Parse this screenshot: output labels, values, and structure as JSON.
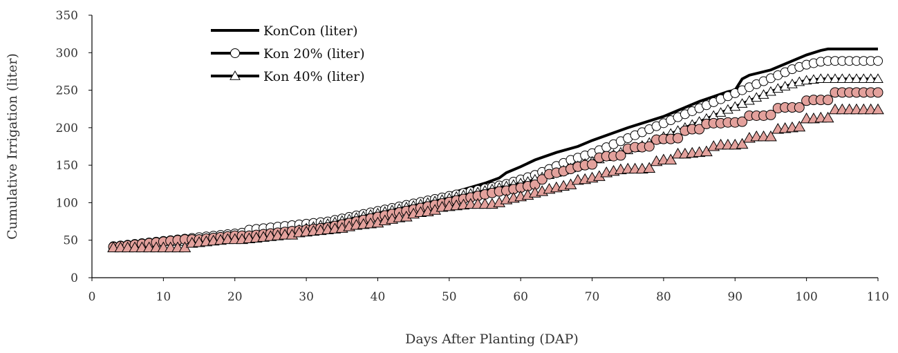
{
  "chart_data": {
    "type": "line",
    "title": "",
    "xlabel": "Days After Planting (DAP)",
    "ylabel": "Cumulative Irrigation (liter)",
    "xlim": [
      0,
      110
    ],
    "ylim": [
      0,
      350
    ],
    "xticks": [
      0,
      10,
      20,
      30,
      40,
      50,
      60,
      70,
      80,
      90,
      100,
      110
    ],
    "yticks": [
      0,
      50,
      100,
      150,
      200,
      250,
      300,
      350
    ],
    "grid": false,
    "legend_position": "top-left",
    "colors": {
      "line": "#000000",
      "kon20_marker_fill": "#ffffff",
      "kon40_marker_fill": "#ffffff",
      "pink_circle_fill": "#e3a19c",
      "pink_triangle_fill": "#e3a19c",
      "axis": "#000000"
    },
    "series": [
      {
        "name": "KonCon (liter)",
        "marker": "none",
        "x": [
          3,
          5,
          10,
          15,
          20,
          21,
          25,
          30,
          35,
          40,
          45,
          50,
          55,
          57,
          58,
          60,
          62,
          65,
          68,
          70,
          75,
          80,
          85,
          89,
          90,
          91,
          92,
          95,
          100,
          102,
          103,
          110
        ],
        "y": [
          43,
          44,
          50,
          55,
          60,
          61,
          66,
          72,
          80,
          89,
          99,
          112,
          126,
          133,
          140,
          148,
          157,
          167,
          175,
          183,
          200,
          215,
          235,
          248,
          250,
          265,
          270,
          277,
          297,
          303,
          305,
          305
        ]
      },
      {
        "name": "Kon 20% (liter)",
        "marker": "circle",
        "x": [
          3,
          4,
          5,
          6,
          7,
          8,
          9,
          10,
          11,
          12,
          13,
          14,
          15,
          16,
          17,
          18,
          19,
          20,
          21,
          22,
          23,
          24,
          25,
          26,
          27,
          28,
          29,
          30,
          31,
          32,
          33,
          34,
          35,
          36,
          37,
          38,
          39,
          40,
          41,
          42,
          43,
          44,
          45,
          46,
          47,
          48,
          49,
          50,
          51,
          52,
          53,
          54,
          55,
          56,
          57,
          58,
          59,
          60,
          61,
          62,
          63,
          64,
          65,
          66,
          67,
          68,
          69,
          70,
          71,
          72,
          73,
          74,
          75,
          76,
          77,
          78,
          79,
          80,
          81,
          82,
          83,
          84,
          85,
          86,
          87,
          88,
          89,
          90,
          91,
          92,
          93,
          94,
          95,
          96,
          97,
          98,
          99,
          100,
          101,
          102,
          103,
          104,
          105,
          106,
          107,
          108,
          109,
          110
        ],
        "y": [
          42,
          43,
          44,
          45,
          46,
          47,
          48,
          49,
          50,
          51,
          52,
          53,
          54,
          55,
          56,
          57,
          58,
          59,
          60,
          64,
          65,
          66,
          67,
          68,
          69,
          70,
          71,
          72,
          73,
          74,
          75,
          77,
          79,
          81,
          83,
          85,
          87,
          89,
          91,
          93,
          95,
          97,
          99,
          101,
          103,
          105,
          107,
          109,
          111,
          113,
          115,
          117,
          119,
          121,
          123,
          125,
          128,
          131,
          134,
          137,
          141,
          145,
          149,
          153,
          157,
          160,
          163,
          166,
          170,
          174,
          178,
          182,
          186,
          190,
          194,
          198,
          202,
          206,
          210,
          214,
          218,
          222,
          226,
          230,
          234,
          238,
          242,
          246,
          250,
          254,
          258,
          262,
          266,
          270,
          274,
          278,
          281,
          284,
          286,
          288,
          289,
          289,
          289,
          289,
          289,
          289,
          289,
          289
        ]
      },
      {
        "name": "Kon 40% (liter)",
        "marker": "triangle",
        "x": [
          3,
          4,
          5,
          6,
          7,
          8,
          9,
          10,
          11,
          12,
          13,
          14,
          15,
          16,
          17,
          18,
          19,
          20,
          21,
          22,
          23,
          24,
          25,
          26,
          27,
          28,
          29,
          30,
          31,
          32,
          33,
          34,
          35,
          36,
          37,
          38,
          39,
          40,
          41,
          42,
          43,
          44,
          45,
          46,
          47,
          48,
          49,
          50,
          51,
          52,
          53,
          54,
          55,
          56,
          57,
          58,
          59,
          60,
          61,
          62,
          63,
          64,
          65,
          66,
          67,
          68,
          69,
          70,
          71,
          72,
          73,
          74,
          75,
          76,
          77,
          78,
          79,
          80,
          81,
          82,
          83,
          84,
          85,
          86,
          87,
          88,
          89,
          90,
          91,
          92,
          93,
          94,
          95,
          96,
          97,
          98,
          99,
          100,
          101,
          102,
          103,
          104,
          105,
          106,
          107,
          108,
          109,
          110
        ],
        "y": [
          41,
          42,
          43,
          44,
          45,
          46,
          47,
          48,
          48,
          48,
          48,
          50,
          51,
          52,
          53,
          54,
          55,
          56,
          56,
          56,
          56,
          58,
          58,
          59,
          60,
          62,
          64,
          66,
          68,
          70,
          72,
          74,
          76,
          78,
          80,
          82,
          84,
          86,
          88,
          90,
          92,
          94,
          96,
          98,
          100,
          102,
          104,
          106,
          108,
          110,
          112,
          114,
          116,
          118,
          120,
          122,
          124,
          126,
          128,
          131,
          134,
          137,
          140,
          143,
          146,
          149,
          152,
          155,
          158,
          161,
          164,
          167,
          170,
          173,
          176,
          180,
          184,
          188,
          192,
          196,
          200,
          204,
          208,
          212,
          216,
          220,
          224,
          228,
          232,
          236,
          240,
          244,
          248,
          252,
          255,
          258,
          261,
          263,
          264,
          265,
          265,
          265,
          265,
          265,
          265,
          265,
          265,
          265
        ]
      },
      {
        "name": "",
        "marker": "circle-pink",
        "x": [
          3,
          4,
          5,
          6,
          7,
          8,
          9,
          10,
          11,
          12,
          13,
          14,
          15,
          16,
          17,
          18,
          19,
          20,
          21,
          22,
          23,
          24,
          25,
          26,
          27,
          28,
          29,
          30,
          31,
          32,
          33,
          34,
          35,
          36,
          37,
          38,
          39,
          40,
          41,
          42,
          43,
          44,
          45,
          46,
          47,
          48,
          49,
          50,
          51,
          52,
          53,
          54,
          55,
          56,
          57,
          58,
          59,
          60,
          61,
          62,
          63,
          64,
          65,
          66,
          67,
          68,
          69,
          70,
          71,
          72,
          73,
          74,
          75,
          76,
          77,
          78,
          79,
          80,
          81,
          82,
          83,
          84,
          85,
          86,
          87,
          88,
          89,
          90,
          91,
          92,
          93,
          94,
          95,
          96,
          97,
          98,
          99,
          100,
          101,
          102,
          103,
          104,
          105,
          106,
          107,
          108,
          109,
          110
        ],
        "y": [
          41,
          42,
          43,
          44,
          45,
          46,
          47,
          48,
          49,
          50,
          51,
          51,
          51,
          52,
          53,
          54,
          55,
          56,
          56,
          56,
          57,
          58,
          59,
          60,
          61,
          62,
          63,
          64,
          65,
          66,
          67,
          69,
          71,
          73,
          75,
          77,
          79,
          81,
          83,
          85,
          87,
          89,
          91,
          93,
          95,
          97,
          99,
          101,
          103,
          105,
          107,
          109,
          111,
          113,
          115,
          116,
          118,
          120,
          122,
          124,
          131,
          138,
          140,
          142,
          145,
          148,
          150,
          151,
          160,
          162,
          162,
          163,
          172,
          174,
          174,
          175,
          184,
          185,
          185,
          186,
          196,
          198,
          198,
          205,
          206,
          206,
          207,
          207,
          208,
          216,
          216,
          216,
          217,
          226,
          227,
          227,
          227,
          236,
          237,
          237,
          237,
          247,
          247,
          247,
          247,
          247,
          247,
          247
        ]
      },
      {
        "name": "",
        "marker": "triangle-pink",
        "x": [
          3,
          4,
          5,
          6,
          7,
          8,
          9,
          10,
          11,
          12,
          13,
          14,
          15,
          16,
          17,
          18,
          19,
          20,
          21,
          22,
          23,
          24,
          25,
          26,
          27,
          28,
          29,
          30,
          31,
          32,
          33,
          34,
          35,
          36,
          37,
          38,
          39,
          40,
          41,
          42,
          43,
          44,
          45,
          46,
          47,
          48,
          49,
          50,
          51,
          52,
          53,
          54,
          55,
          56,
          57,
          58,
          59,
          60,
          61,
          62,
          63,
          64,
          65,
          66,
          67,
          68,
          69,
          70,
          71,
          72,
          73,
          74,
          75,
          76,
          77,
          78,
          79,
          80,
          81,
          82,
          83,
          84,
          85,
          86,
          87,
          88,
          89,
          90,
          91,
          92,
          93,
          94,
          95,
          96,
          97,
          98,
          99,
          100,
          101,
          102,
          103,
          104,
          105,
          106,
          107,
          108,
          109,
          110
        ],
        "y": [
          40,
          40,
          40,
          40,
          40,
          40,
          40,
          40,
          40,
          40,
          40,
          46,
          47,
          48,
          49,
          50,
          51,
          51,
          51,
          52,
          53,
          54,
          55,
          56,
          57,
          57,
          60,
          61,
          62,
          63,
          64,
          65,
          66,
          68,
          70,
          71,
          72,
          73,
          76,
          78,
          80,
          81,
          85,
          87,
          88,
          90,
          94,
          95,
          96,
          97,
          98,
          98,
          98,
          98,
          100,
          104,
          106,
          108,
          110,
          113,
          115,
          118,
          120,
          122,
          124,
          130,
          131,
          133,
          135,
          140,
          142,
          144,
          145,
          145,
          145,
          146,
          155,
          157,
          157,
          165,
          165,
          166,
          167,
          168,
          175,
          177,
          177,
          177,
          178,
          186,
          188,
          188,
          188,
          198,
          199,
          200,
          201,
          212,
          212,
          213,
          213,
          224,
          224,
          224,
          224,
          224,
          224,
          224
        ]
      }
    ]
  }
}
